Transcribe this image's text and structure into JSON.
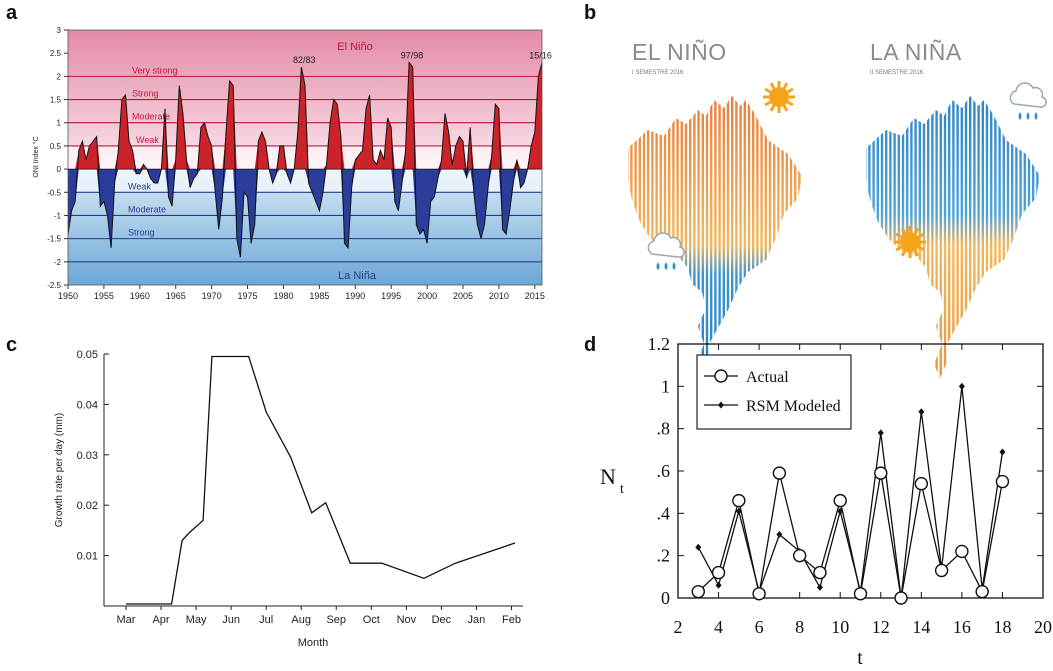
{
  "panels": {
    "a": "a",
    "b": "b",
    "c": "c",
    "d": "d"
  },
  "chart_data": [
    {
      "panel": "a",
      "type": "area",
      "ylabel": "ONI Index °C",
      "xlim": [
        1950,
        2016
      ],
      "ylim": [
        -2.5,
        3
      ],
      "xticks": [
        1950,
        1955,
        1960,
        1965,
        1970,
        1975,
        1980,
        1985,
        1990,
        1995,
        2000,
        2005,
        2010,
        2015
      ],
      "yticks": [
        -2.5,
        -2,
        -1.5,
        -1,
        -0.5,
        0,
        0.5,
        1,
        1.5,
        2,
        2.5,
        3
      ],
      "region_labels": {
        "positive": "El Niño",
        "negative": "La Niña"
      },
      "thresholds": [
        {
          "label": "Very strong",
          "value": 2.0,
          "color": "#c0143c"
        },
        {
          "label": "Strong",
          "value": 1.5,
          "color": "#c0143c"
        },
        {
          "label": "Moderate",
          "value": 1.0,
          "color": "#c0143c"
        },
        {
          "label": "Weak",
          "value": 0.5,
          "color": "#c0143c"
        },
        {
          "label": "Weak",
          "value": -0.5,
          "color": "#2b3990"
        },
        {
          "label": "Moderate",
          "value": -1.0,
          "color": "#2b3990"
        },
        {
          "label": "Strong",
          "value": -1.5,
          "color": "#2b3990"
        },
        {
          "label": "",
          "value": -2.0,
          "color": "#2b3990"
        }
      ],
      "annotations": [
        {
          "text": "82/83",
          "x": 1982.9,
          "y": 2.2
        },
        {
          "text": "97/98",
          "x": 1997.9,
          "y": 2.3
        },
        {
          "text": "15/16",
          "x": 2015.8,
          "y": 2.3
        }
      ],
      "series": [
        {
          "color_positive": "#cc2229",
          "color_negative": "#2b3d9a",
          "x": [
            1950.0,
            1950.5,
            1951.0,
            1951.5,
            1952.0,
            1952.5,
            1953.0,
            1953.5,
            1954.0,
            1954.5,
            1955.0,
            1955.5,
            1956.0,
            1956.5,
            1957.0,
            1957.5,
            1958.0,
            1958.5,
            1959.0,
            1959.5,
            1960.0,
            1960.5,
            1961.0,
            1961.5,
            1962.0,
            1962.5,
            1963.0,
            1963.5,
            1964.0,
            1964.5,
            1965.0,
            1965.5,
            1966.0,
            1966.5,
            1967.0,
            1967.5,
            1968.0,
            1968.5,
            1969.0,
            1969.5,
            1970.0,
            1970.5,
            1971.0,
            1971.5,
            1972.0,
            1972.5,
            1973.0,
            1973.5,
            1974.0,
            1974.5,
            1975.0,
            1975.5,
            1976.0,
            1976.5,
            1977.0,
            1977.5,
            1978.0,
            1978.5,
            1979.0,
            1979.5,
            1980.0,
            1980.5,
            1981.0,
            1981.5,
            1982.0,
            1982.5,
            1983.0,
            1983.5,
            1984.0,
            1984.5,
            1985.0,
            1985.5,
            1986.0,
            1986.5,
            1987.0,
            1987.5,
            1988.0,
            1988.5,
            1989.0,
            1989.5,
            1990.0,
            1990.5,
            1991.0,
            1991.5,
            1992.0,
            1992.5,
            1993.0,
            1993.5,
            1994.0,
            1994.5,
            1995.0,
            1995.5,
            1996.0,
            1996.5,
            1997.0,
            1997.5,
            1998.0,
            1998.5,
            1999.0,
            1999.5,
            2000.0,
            2000.5,
            2001.0,
            2001.5,
            2002.0,
            2002.5,
            2003.0,
            2003.5,
            2004.0,
            2004.5,
            2005.0,
            2005.5,
            2006.0,
            2006.5,
            2007.0,
            2007.5,
            2008.0,
            2008.5,
            2009.0,
            2009.5,
            2010.0,
            2010.5,
            2011.0,
            2011.5,
            2012.0,
            2012.5,
            2013.0,
            2013.5,
            2014.0,
            2014.5,
            2015.0,
            2015.5,
            2016.0
          ],
          "y": [
            -1.4,
            -0.9,
            -0.7,
            0.4,
            0.6,
            0.2,
            0.5,
            0.6,
            0.7,
            -0.8,
            -0.7,
            -1.0,
            -1.7,
            -0.3,
            0.4,
            1.5,
            1.6,
            0.6,
            0.4,
            -0.1,
            -0.1,
            0.1,
            0.0,
            -0.2,
            -0.3,
            -0.3,
            0.0,
            1.3,
            -0.6,
            -0.8,
            0.2,
            1.8,
            1.2,
            0.2,
            -0.4,
            -0.2,
            -0.1,
            0.9,
            1.0,
            0.7,
            0.5,
            -0.5,
            -1.3,
            -0.6,
            0.8,
            1.9,
            1.8,
            -1.5,
            -1.9,
            -0.5,
            -0.6,
            -1.6,
            -1.2,
            0.6,
            0.8,
            0.6,
            0.0,
            -0.3,
            -0.1,
            0.5,
            0.5,
            -0.1,
            -0.3,
            0.0,
            0.8,
            2.2,
            1.8,
            -0.3,
            -0.5,
            -0.7,
            -0.9,
            -0.5,
            0.1,
            1.0,
            1.5,
            1.4,
            0.7,
            -1.6,
            -1.7,
            -0.4,
            0.2,
            0.3,
            0.4,
            1.3,
            1.6,
            0.2,
            0.1,
            0.4,
            0.2,
            1.1,
            0.9,
            -0.7,
            -0.9,
            -0.3,
            0.4,
            2.3,
            2.2,
            -1.2,
            -1.4,
            -1.3,
            -1.6,
            -0.7,
            -0.6,
            -0.2,
            0.2,
            1.2,
            0.8,
            0.1,
            0.5,
            0.7,
            0.6,
            -0.2,
            0.9,
            -0.5,
            -1.2,
            -1.5,
            -1.2,
            -0.4,
            0.3,
            1.4,
            1.3,
            -1.3,
            -1.4,
            -0.9,
            -0.3,
            0.2,
            -0.4,
            -0.3,
            0.0,
            0.5,
            0.8,
            2.0,
            2.3
          ]
        }
      ]
    },
    {
      "panel": "b",
      "type": "other",
      "maps": [
        {
          "title": "EL NIÑO",
          "subtitle": "I SEMESTRE 2016"
        },
        {
          "title": "LA NIÑA",
          "subtitle": "II SEMESTRE 2016"
        }
      ],
      "colors": {
        "warm": "#f0a33a",
        "cold": "#2c8fd0",
        "sun": "#f5a21d",
        "rain": "#2c8fd0"
      }
    },
    {
      "panel": "c",
      "type": "line",
      "xlabel": "Month",
      "ylabel": "Growth rate per day (mm)",
      "categories": [
        "Mar",
        "Apr",
        "May",
        "Jun",
        "Jul",
        "Aug",
        "Sep",
        "Oct",
        "Nov",
        "Dec",
        "Jan",
        "Feb"
      ],
      "yticks": [
        0.01,
        0.02,
        0.03,
        0.04,
        0.05
      ],
      "ylim": [
        0.0,
        0.05
      ],
      "x": [
        0.0,
        0.4,
        0.8,
        1.3,
        1.6,
        1.8,
        2.2,
        2.45,
        2.8,
        3.3,
        3.5,
        4.0,
        4.7,
        5.3,
        5.7,
        6.4,
        7.3,
        8.5,
        9.4,
        11.1
      ],
      "values": [
        0.0004,
        0.0004,
        0.0004,
        0.0004,
        0.013,
        0.0145,
        0.017,
        0.0495,
        0.0495,
        0.0495,
        0.0495,
        0.0385,
        0.0295,
        0.0185,
        0.0205,
        0.0085,
        0.0085,
        0.0055,
        0.0085,
        0.0125
      ]
    },
    {
      "panel": "d",
      "type": "line",
      "xlabel": "t",
      "ylabel": "N",
      "ylabel_sub": "t",
      "xlim": [
        2,
        20
      ],
      "ylim": [
        0,
        1.2
      ],
      "xticks": [
        2,
        4,
        6,
        8,
        10,
        12,
        14,
        16,
        18,
        20
      ],
      "yticks": [
        0,
        0.2,
        0.4,
        0.6,
        0.8,
        1,
        1.2
      ],
      "ytick_labels": [
        "0",
        ".2",
        ".4",
        ".6",
        ".8",
        "1",
        "1.2"
      ],
      "legend_placement": "top-left",
      "series": [
        {
          "name": "Actual",
          "x": [
            3,
            4,
            5,
            6,
            7,
            8,
            9,
            10,
            11,
            12,
            13,
            14,
            15,
            16,
            17,
            18
          ],
          "values": [
            0.03,
            0.12,
            0.46,
            0.02,
            0.59,
            0.2,
            0.12,
            0.46,
            0.02,
            0.59,
            0.0,
            0.54,
            0.13,
            0.22,
            0.03,
            0.55
          ]
        },
        {
          "name": "RSM Modeled",
          "x": [
            3,
            4,
            5,
            6,
            7,
            8,
            9,
            10,
            11,
            12,
            13,
            14,
            15,
            16,
            17,
            18
          ],
          "values": [
            0.24,
            0.06,
            0.41,
            0.03,
            0.3,
            0.22,
            0.05,
            0.41,
            0.03,
            0.78,
            0.0,
            0.88,
            0.14,
            1.0,
            0.04,
            0.69
          ]
        }
      ]
    }
  ]
}
